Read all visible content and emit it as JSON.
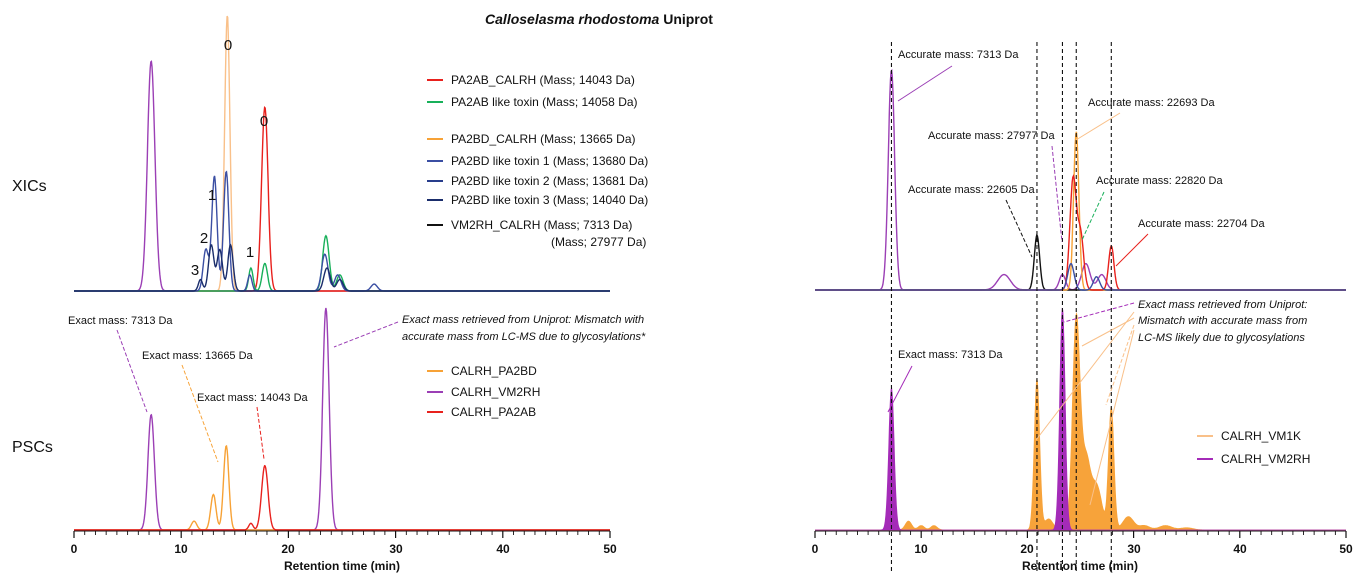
{
  "figure": {
    "title_species": "Calloselasma rhodostoma",
    "title_suffix": "Uniprot",
    "row_labels": {
      "xic": "XICs",
      "psc": "PSCs"
    }
  },
  "colors": {
    "red": "#e8211d",
    "green": "#18b05a",
    "orange": "#f7a236",
    "light_orange": "#f9c089",
    "navy1": "#3b4fa3",
    "navy2": "#283d8c",
    "navy3": "#1a2d6b",
    "black": "#111111",
    "purple": "#9b3fb5",
    "fill_orange": "#f7a33a",
    "fill_purple": "#a42bb8"
  },
  "chart_data": [
    {
      "id": "left-xic",
      "type": "line",
      "xlabel": "",
      "xlim": [
        0,
        50
      ],
      "legend_position": "right",
      "legend": [
        {
          "name": "PA2AB_CALRH (Mass; 14043 Da)",
          "color": "red"
        },
        {
          "name": "PA2AB like toxin (Mass; 14058 Da)",
          "color": "green"
        },
        {
          "name": "PA2BD_CALRH (Mass; 13665 Da)",
          "color": "orange"
        },
        {
          "name": "PA2BD like toxin 1 (Mass; 13680 Da)",
          "color": "navy1"
        },
        {
          "name": "PA2BD like toxin 2 (Mass; 13681 Da)",
          "color": "navy2"
        },
        {
          "name": "PA2BD like toxin 3 (Mass; 14040 Da)",
          "color": "navy3"
        },
        {
          "name": "VM2RH_CALRH (Mass; 7313  Da)",
          "color": "black"
        },
        {
          "name": "(Mass; 27977 Da)",
          "color": ""
        }
      ],
      "series": [
        {
          "color": "purple",
          "peaks": [
            [
              7.2,
              1.0,
              0.35
            ]
          ]
        },
        {
          "color": "light_orange",
          "peaks": [
            [
              14.3,
              1.2,
              0.25
            ]
          ]
        },
        {
          "color": "red",
          "peaks": [
            [
              17.8,
              0.8,
              0.3
            ]
          ]
        },
        {
          "color": "green",
          "peaks": [
            [
              16.5,
              0.1,
              0.2
            ],
            [
              17.8,
              0.12,
              0.25
            ],
            [
              23.5,
              0.24,
              0.3
            ],
            [
              24.8,
              0.07,
              0.3
            ]
          ]
        },
        {
          "color": "navy1",
          "peaks": [
            [
              12.3,
              0.18,
              0.25
            ],
            [
              13.1,
              0.5,
              0.25
            ],
            [
              14.2,
              0.52,
              0.25
            ],
            [
              16.4,
              0.07,
              0.2
            ],
            [
              23.4,
              0.16,
              0.3
            ],
            [
              24.6,
              0.07,
              0.3
            ],
            [
              28.0,
              0.03,
              0.3
            ]
          ]
        },
        {
          "color": "navy3",
          "peaks": [
            [
              11.8,
              0.05,
              0.2
            ],
            [
              12.8,
              0.2,
              0.25
            ],
            [
              13.6,
              0.18,
              0.25
            ],
            [
              14.6,
              0.2,
              0.25
            ],
            [
              23.6,
              0.1,
              0.3
            ],
            [
              24.8,
              0.05,
              0.3
            ]
          ]
        }
      ],
      "peak_labels": [
        {
          "text": "0",
          "x": 14.3
        },
        {
          "text": "0",
          "x": 17.8
        },
        {
          "text": "1",
          "x": 12.9
        },
        {
          "text": "2",
          "x": 12.2
        },
        {
          "text": "3",
          "x": 11.4
        },
        {
          "text": "1",
          "x": 16.5
        }
      ]
    },
    {
      "id": "left-psc",
      "type": "line",
      "xlabel": "Retention time (min)",
      "xlim": [
        0,
        50
      ],
      "xticks": [
        0,
        10,
        20,
        30,
        40,
        50
      ],
      "legend_position": "right",
      "legend": [
        {
          "name": "CALRH_PA2BD",
          "color": "orange"
        },
        {
          "name": "CALRH_VM2RH",
          "color": "purple"
        },
        {
          "name": "CALRH_PA2AB",
          "color": "red"
        }
      ],
      "series": [
        {
          "color": "purple",
          "peaks": [
            [
              7.2,
              0.52,
              0.3
            ],
            [
              23.5,
              1.0,
              0.3
            ]
          ]
        },
        {
          "color": "orange",
          "peaks": [
            [
              11.2,
              0.04,
              0.25
            ],
            [
              13.0,
              0.16,
              0.25
            ],
            [
              14.2,
              0.38,
              0.25
            ]
          ]
        },
        {
          "color": "red",
          "peaks": [
            [
              16.5,
              0.03,
              0.2
            ],
            [
              17.8,
              0.29,
              0.3
            ]
          ]
        }
      ],
      "annotations": [
        "Exact mass: 7313 Da",
        "Exact mass: 13665 Da",
        "Exact mass: 14043 Da",
        "Exact mass retrieved from Uniprot: Mismatch with",
        "accurate mass from LC-MS due to glycosylations*"
      ]
    },
    {
      "id": "right-xic",
      "type": "line",
      "xlabel": "",
      "xlim": [
        0,
        50
      ],
      "series": [
        {
          "color": "purple",
          "peaks": [
            [
              7.2,
              1.0,
              0.3
            ],
            [
              17.8,
              0.07,
              0.6
            ],
            [
              23.3,
              0.07,
              0.3
            ],
            [
              25.5,
              0.12,
              0.4
            ],
            [
              27.0,
              0.07,
              0.4
            ]
          ]
        },
        {
          "color": "black",
          "peaks": [
            [
              20.9,
              0.25,
              0.25
            ]
          ]
        },
        {
          "color": "orange",
          "peaks": [
            [
              24.6,
              0.72,
              0.25
            ]
          ]
        },
        {
          "color": "red",
          "peaks": [
            [
              24.3,
              0.5,
              0.3
            ],
            [
              25.0,
              0.25,
              0.3
            ],
            [
              27.9,
              0.2,
              0.25
            ]
          ]
        },
        {
          "color": "navy1",
          "peaks": [
            [
              24.1,
              0.12,
              0.3
            ],
            [
              26.5,
              0.06,
              0.3
            ]
          ]
        }
      ],
      "annotations": [
        "Accurate mass: 7313 Da",
        "Accurate mass: 27977 Da",
        "Accurate mass: 22693 Da",
        "Accurate mass: 22605 Da",
        "Accurate mass: 22820 Da",
        "Accurate mass: 22704 Da"
      ],
      "dashed_lines_x": [
        7.2,
        20.9,
        23.3,
        24.6,
        27.9
      ]
    },
    {
      "id": "right-psc",
      "type": "area",
      "xlabel": "Retention time (min)",
      "xlim": [
        0,
        50
      ],
      "xticks": [
        0,
        10,
        20,
        30,
        40,
        50
      ],
      "legend_position": "right",
      "legend": [
        {
          "name": "CALRH_VM1K",
          "color": "fill_orange"
        },
        {
          "name": "CALRH_VM2RH",
          "color": "fill_purple"
        }
      ],
      "series": [
        {
          "color": "fill_orange",
          "peaks": [
            [
              8.8,
              0.04,
              0.3
            ],
            [
              10.0,
              0.02,
              0.3
            ],
            [
              11.2,
              0.02,
              0.3
            ],
            [
              20.9,
              0.68,
              0.25
            ],
            [
              22.0,
              0.05,
              0.4
            ],
            [
              24.6,
              0.95,
              0.35
            ],
            [
              25.5,
              0.3,
              0.4
            ],
            [
              26.5,
              0.2,
              0.5
            ],
            [
              27.9,
              0.55,
              0.25
            ],
            [
              29.5,
              0.06,
              0.5
            ],
            [
              31.0,
              0.02,
              0.5
            ],
            [
              33.0,
              0.02,
              0.6
            ],
            [
              35.0,
              0.01,
              0.6
            ]
          ]
        },
        {
          "color": "fill_purple",
          "peaks": [
            [
              7.2,
              0.64,
              0.25
            ],
            [
              23.3,
              1.0,
              0.25
            ]
          ]
        }
      ],
      "annotations": [
        "Exact mass: 7313 Da",
        "Exact mass retrieved from Uniprot:",
        "Mismatch with accurate mass from",
        "LC-MS likely due to glycosylations"
      ]
    }
  ]
}
